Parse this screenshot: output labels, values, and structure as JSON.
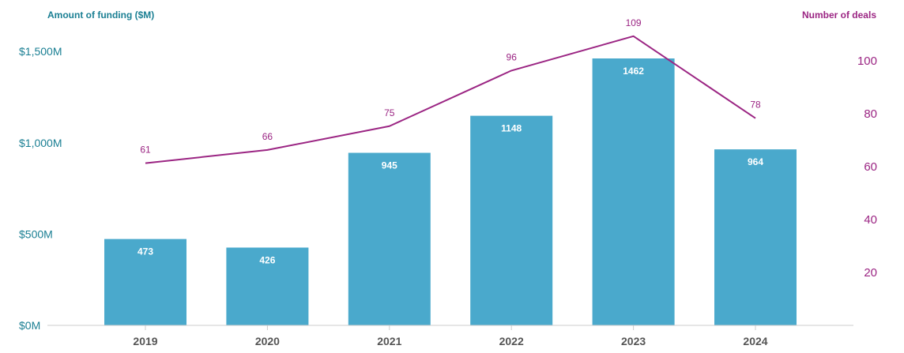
{
  "chart_data": {
    "type": "bar",
    "categories": [
      "2019",
      "2020",
      "2021",
      "2022",
      "2023",
      "2024"
    ],
    "series": [
      {
        "name": "Amount of funding ($M)",
        "type": "bar",
        "axis": "left",
        "values": [
          473,
          426,
          945,
          1148,
          1462,
          964
        ],
        "labels": [
          "473",
          "426",
          "945",
          "1148",
          "1462",
          "964"
        ]
      },
      {
        "name": "Number of deals",
        "type": "line",
        "axis": "right",
        "values": [
          61,
          66,
          75,
          96,
          109,
          78
        ],
        "labels": [
          "61",
          "66",
          "75",
          "96",
          "109",
          "78"
        ]
      }
    ],
    "left_axis": {
      "label": "Amount of funding ($M)",
      "ticks": [
        0,
        500,
        1000,
        1500
      ],
      "tick_labels": [
        "$0M",
        "$500M",
        "$1,000M",
        "$1,500M"
      ]
    },
    "right_axis": {
      "label": "Number of deals",
      "ticks": [
        20,
        40,
        60,
        80,
        100
      ],
      "tick_labels": [
        "20",
        "40",
        "60",
        "80",
        "100"
      ]
    },
    "grid": false,
    "colors": {
      "bar": "#4aa9cc",
      "line": "#9b2583",
      "left_axis": "#1a7f93",
      "right_axis": "#9b2583",
      "baseline": "#cccccc"
    }
  }
}
